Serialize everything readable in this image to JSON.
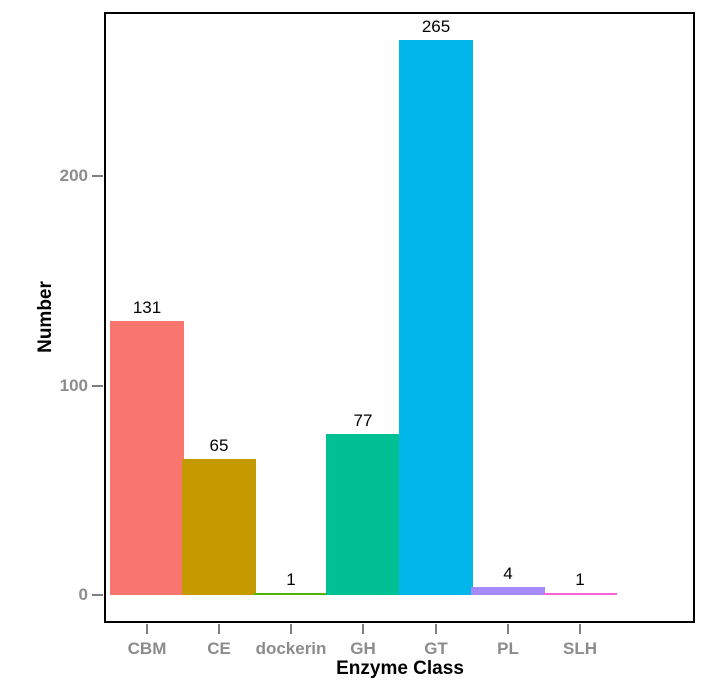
{
  "chart_data": {
    "type": "bar",
    "title": "",
    "categories": [
      "CBM",
      "CE",
      "dockerin",
      "GH",
      "GT",
      "PL",
      "SLH"
    ],
    "values": [
      131,
      65,
      1,
      77,
      265,
      4,
      1
    ],
    "value_labels": [
      "131",
      "65",
      "1",
      "77",
      "265",
      "4",
      "1"
    ],
    "bar_colors": [
      "#F8766D",
      "#C49A00",
      "#53B400",
      "#00C094",
      "#00B6EB",
      "#A58AFF",
      "#FB61D7"
    ],
    "xlabel": "Enzyme Class",
    "ylabel": "Number",
    "y_ticks": {
      "values": [
        0,
        100,
        200
      ],
      "labels": [
        "0",
        "100",
        "200"
      ]
    },
    "ylim": [
      0,
      278
    ],
    "grid": false,
    "legend": "none",
    "style": {
      "background": "#ffffff",
      "panel_border_color": "#000000",
      "axis_text_color": "#8c8c8c",
      "tick_color": "#808080",
      "value_label_color": "#000000",
      "axis_title_color": "#000000"
    }
  }
}
